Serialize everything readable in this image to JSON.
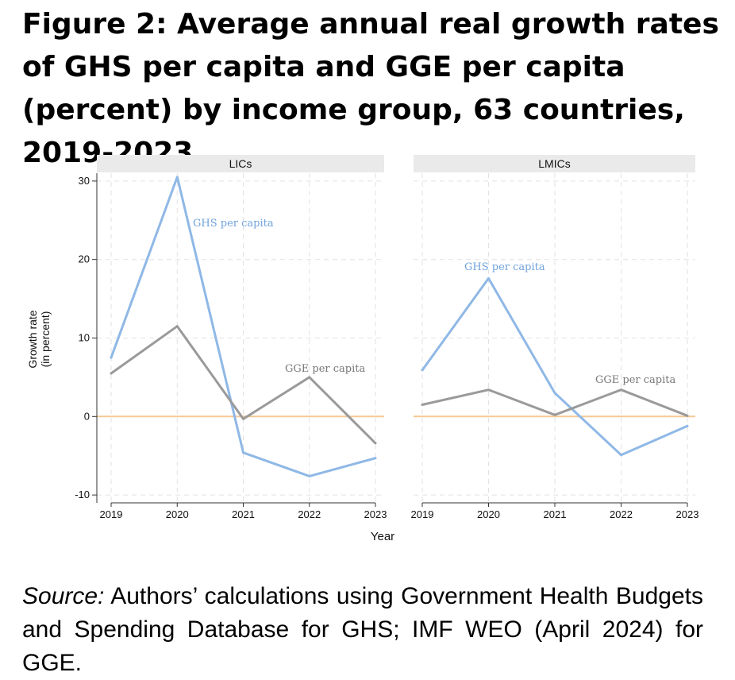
{
  "figure": {
    "title": "Figure 2: Average annual real growth rates of GHS per capita and GGE per capita (percent) by income group, 63 countries, 2019-2023.",
    "source_label": "Source:",
    "source_text": " Authors’ calculations using Government Health Budgets and Spending Database for GHS; IMF WEO (April 2024) for GGE."
  },
  "chart_data": {
    "type": "line",
    "xlabel": "Year",
    "ylabel": "Growth rate",
    "ylabel_unit": "(in percent)",
    "x": [
      2019,
      2020,
      2021,
      2022,
      2023
    ],
    "yticks": [
      -10,
      0,
      10,
      20,
      30
    ],
    "ylim": [
      -11,
      31
    ],
    "grid": true,
    "reference_line": {
      "y": 0,
      "color": "#f5c896"
    },
    "colors": {
      "GHS per capita": "#8fb8e6",
      "GGE per capita": "#9a9a9a"
    },
    "panels": [
      {
        "name": "LICs",
        "series": [
          {
            "name": "GHS per capita",
            "values": [
              7.5,
              30.5,
              -4.6,
              -7.6,
              -5.3
            ]
          },
          {
            "name": "GGE per capita",
            "values": [
              5.5,
              11.5,
              -0.3,
              5.0,
              -3.4
            ]
          }
        ]
      },
      {
        "name": "LMICs",
        "series": [
          {
            "name": "GHS per capita",
            "values": [
              5.9,
              17.6,
              3.0,
              -4.9,
              -1.2
            ]
          },
          {
            "name": "GGE per capita",
            "values": [
              1.5,
              3.4,
              0.2,
              3.4,
              0.1
            ]
          }
        ]
      }
    ]
  }
}
